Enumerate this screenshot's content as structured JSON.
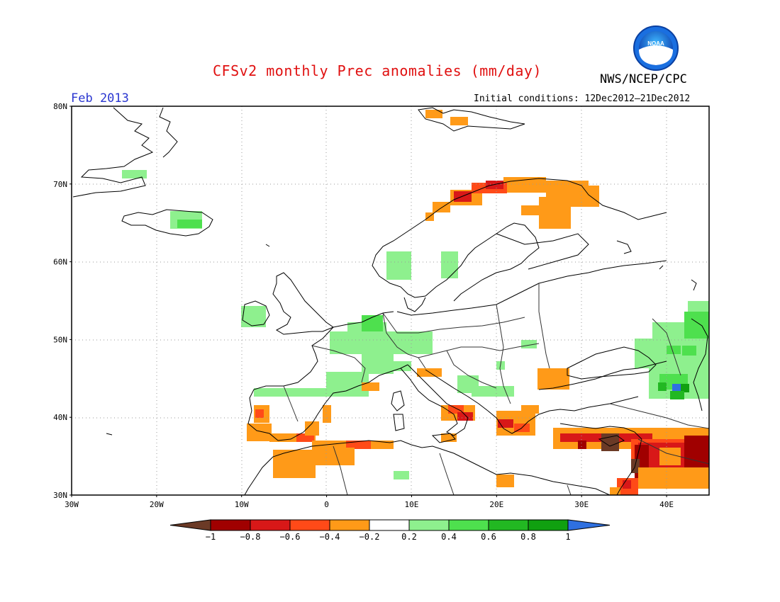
{
  "title": "CFSv2 monthly Prec anomalies (mm/day)",
  "agency": "NWS/NCEP/CPC",
  "logo_text": "NOAA",
  "month_label": "Feb 2013",
  "initial_conditions": "Initial conditions: 12Dec2012—21Dec2012",
  "map": {
    "lon_range": [
      -30,
      45
    ],
    "lat_range": [
      30,
      80
    ],
    "lat_labels": [
      "80N",
      "70N",
      "60N",
      "50N",
      "40N",
      "30N"
    ],
    "lon_labels": [
      "30W",
      "20W",
      "10W",
      "0",
      "10E",
      "20E",
      "30E",
      "40E"
    ],
    "grid": "dotted"
  },
  "colorbar": {
    "labels": [
      "−1",
      "−0.8",
      "−0.6",
      "−0.4",
      "−0.2",
      "0.2",
      "0.4",
      "0.6",
      "0.8",
      "1"
    ],
    "below_color": "#6b3a26",
    "above_color": "#2f70e0",
    "colors": [
      "#a00000",
      "#d81818",
      "#ff4a18",
      "#ff9a18",
      "#ffffff",
      "#8ef08e",
      "#4ee04e",
      "#22b822",
      "#10a010"
    ]
  },
  "colors": {
    "title": "#e01010",
    "month": "#2a36d0"
  }
}
